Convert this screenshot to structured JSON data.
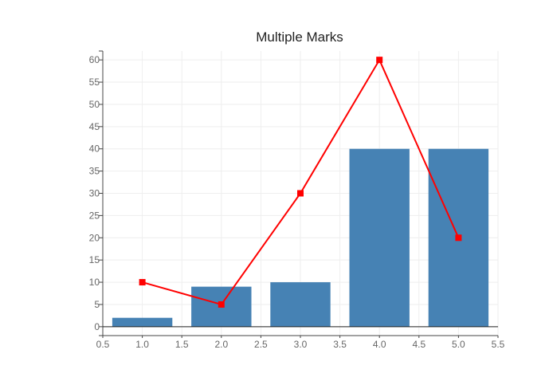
{
  "chart_data": {
    "title": "Multiple Marks",
    "type": "bar",
    "xlim": [
      0.5,
      5.5
    ],
    "ylim": [
      -2,
      62
    ],
    "x_ticks": [
      "0.5",
      "1.0",
      "1.5",
      "2.0",
      "2.5",
      "3.0",
      "3.5",
      "4.0",
      "4.5",
      "5.0",
      "5.5"
    ],
    "y_ticks": [
      "0",
      "5",
      "10",
      "15",
      "20",
      "25",
      "30",
      "35",
      "40",
      "45",
      "50",
      "55",
      "60"
    ],
    "grid": true,
    "series": [
      {
        "type": "bar",
        "x": [
          1,
          2,
          3,
          4,
          5
        ],
        "values": [
          2,
          9,
          10,
          40,
          40
        ],
        "color": "#4682b4"
      },
      {
        "type": "line",
        "x": [
          1,
          2,
          3,
          4,
          5
        ],
        "values": [
          10,
          5,
          30,
          60,
          20
        ],
        "color": "#ff0000",
        "marker": "square"
      }
    ]
  }
}
